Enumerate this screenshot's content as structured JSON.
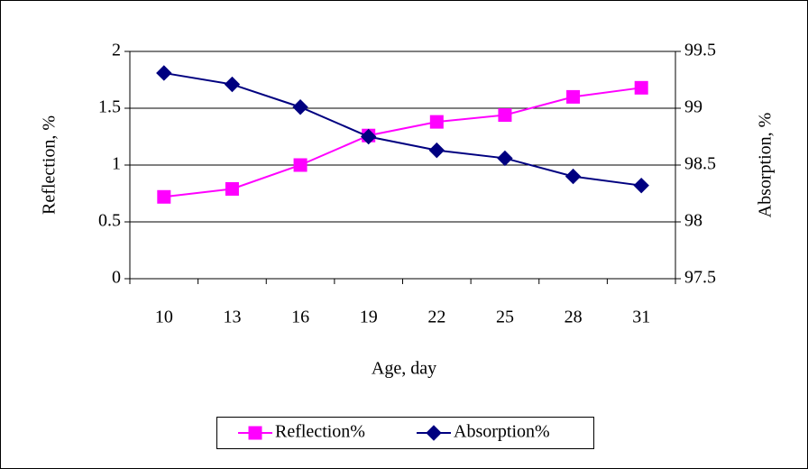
{
  "chart_data": {
    "type": "line",
    "categories": [
      "10",
      "13",
      "16",
      "19",
      "22",
      "25",
      "28",
      "31"
    ],
    "series": [
      {
        "name": "Reflection%",
        "color": "#ff00ff",
        "marker": "square",
        "values": [
          0.72,
          0.79,
          1.0,
          1.26,
          1.38,
          1.44,
          1.6,
          1.68
        ]
      },
      {
        "name": "Absorption%",
        "color": "#000080",
        "marker": "diamond",
        "axis": "y2",
        "values": [
          99.31,
          99.21,
          99.01,
          98.75,
          98.63,
          98.56,
          98.4,
          98.32
        ]
      }
    ],
    "xlabel": "Age, day",
    "ylabel": "Reflection, %",
    "y2label": "Absorption, %",
    "ylim": [
      0,
      2
    ],
    "yticks": [
      0,
      0.5,
      1,
      1.5,
      2
    ],
    "y2lim": [
      97.5,
      99.5
    ],
    "y2ticks": [
      97.5,
      98,
      98.5,
      99,
      99.5
    ],
    "grid": true,
    "legend": "bottom"
  }
}
